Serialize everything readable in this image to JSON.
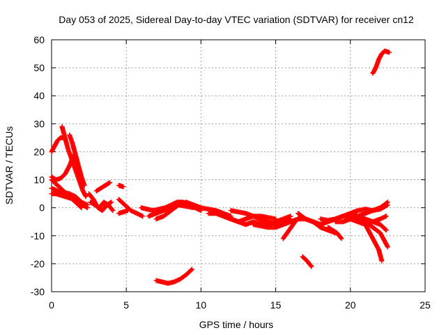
{
  "chart_data": {
    "type": "scatter",
    "title": "Day 053 of 2025, Sidereal Day-to-day VTEC variation (SDTVAR) for receiver cn12",
    "xlabel": "GPS time / hours",
    "ylabel": "SDTVAR / TECUs",
    "xlim": [
      0,
      25
    ],
    "ylim": [
      -30,
      60
    ],
    "xticks": [
      0,
      5,
      10,
      15,
      20,
      25
    ],
    "yticks": [
      -30,
      -20,
      -10,
      0,
      10,
      20,
      30,
      40,
      50,
      60
    ],
    "grid": true,
    "marker": "plus",
    "color": "#ff0000",
    "series": [
      {
        "name": "s1",
        "x": [
          0.0,
          0.2,
          0.4,
          0.6,
          0.8
        ],
        "y": [
          20,
          22,
          24,
          25,
          25
        ]
      },
      {
        "name": "s2",
        "x": [
          0.7,
          0.9,
          1.1,
          1.3,
          1.5,
          1.7,
          1.9,
          2.1,
          2.3
        ],
        "y": [
          29,
          25,
          21,
          18,
          15,
          12,
          9,
          6,
          4
        ]
      },
      {
        "name": "s3",
        "x": [
          1.2,
          1.4,
          1.6,
          1.8,
          2.0,
          2.2
        ],
        "y": [
          26,
          23,
          19,
          15,
          11,
          8
        ]
      },
      {
        "name": "s4",
        "x": [
          0.0,
          0.3,
          0.6,
          0.9,
          1.2,
          1.5,
          1.8,
          2.1
        ],
        "y": [
          11,
          10,
          10.5,
          12,
          15,
          19,
          14,
          9
        ]
      },
      {
        "name": "s5",
        "x": [
          0.0,
          0.4,
          0.8,
          1.2,
          1.6,
          2.0,
          2.4
        ],
        "y": [
          7,
          6,
          5.5,
          5,
          4,
          2,
          1
        ]
      },
      {
        "name": "s6",
        "x": [
          0.0,
          0.4,
          0.8,
          1.2,
          1.6,
          2.0
        ],
        "y": [
          10,
          8,
          6,
          4,
          2,
          0
        ]
      },
      {
        "name": "s7",
        "x": [
          0.0,
          0.3,
          0.6,
          0.9,
          1.2,
          1.5,
          1.8,
          2.1,
          2.4
        ],
        "y": [
          5,
          5,
          4.5,
          4,
          3.5,
          3,
          2,
          1,
          0
        ]
      },
      {
        "name": "s8",
        "x": [
          2.5,
          2.8,
          3.1,
          3.4,
          3.7,
          4.0
        ],
        "y": [
          5,
          3,
          0,
          -1,
          1,
          2
        ]
      },
      {
        "name": "s9",
        "x": [
          2.6,
          2.9,
          3.2,
          3.5,
          3.8,
          4.1
        ],
        "y": [
          2,
          1,
          0,
          2,
          1,
          -1
        ]
      },
      {
        "name": "s10",
        "x": [
          3.0,
          3.3,
          3.6,
          3.9
        ],
        "y": [
          6,
          7,
          8,
          9
        ]
      },
      {
        "name": "s11",
        "x": [
          4.5,
          4.8
        ],
        "y": [
          8,
          7.5
        ]
      },
      {
        "name": "s12",
        "x": [
          4.5,
          4.9,
          5.3,
          5.7,
          6.1
        ],
        "y": [
          3,
          1,
          -1,
          -2,
          -3
        ]
      },
      {
        "name": "s13",
        "x": [
          4.5,
          4.8,
          5.1
        ],
        "y": [
          -2,
          -1.5,
          -1
        ]
      },
      {
        "name": "s14",
        "x": [
          6.0,
          6.4,
          6.8,
          7.2,
          7.6,
          8.0,
          8.4,
          8.8,
          9.2,
          9.6,
          10.0
        ],
        "y": [
          0,
          -0.5,
          -1,
          -0.5,
          0,
          1,
          2,
          2,
          1,
          0,
          -1
        ]
      },
      {
        "name": "s15",
        "x": [
          6.5,
          7.0,
          7.5,
          8.0,
          8.5,
          9.0,
          9.5
        ],
        "y": [
          -3,
          -2,
          -1,
          0,
          1,
          0.5,
          0
        ]
      },
      {
        "name": "s16",
        "x": [
          7.0,
          7.5,
          8.0,
          8.5,
          9.0,
          9.5
        ],
        "y": [
          -4,
          -3,
          -1,
          1,
          2,
          1
        ]
      },
      {
        "name": "s17",
        "x": [
          7.0,
          7.4,
          7.8,
          8.2,
          8.6,
          9.0,
          9.4
        ],
        "y": [
          -26,
          -26.5,
          -27,
          -26.5,
          -25.5,
          -24,
          -22
        ]
      },
      {
        "name": "s18",
        "x": [
          9.5,
          10.0,
          10.5,
          11.0,
          11.5,
          12.0
        ],
        "y": [
          1,
          0,
          -0.5,
          -1,
          -2,
          -3
        ]
      },
      {
        "name": "s19",
        "x": [
          10.5,
          11.0,
          11.5,
          12.0,
          12.5,
          13.0,
          13.5,
          14.0,
          14.5,
          15.0
        ],
        "y": [
          -2,
          -2,
          -3,
          -4,
          -5,
          -4,
          -3,
          -3,
          -3.5,
          -4
        ]
      },
      {
        "name": "s20",
        "x": [
          11.5,
          12.0,
          12.5,
          13.0,
          13.5,
          14.0,
          14.5,
          15.0,
          15.5,
          16.0
        ],
        "y": [
          -3,
          -4,
          -5,
          -6,
          -5,
          -5.5,
          -6,
          -5,
          -4,
          -3
        ]
      },
      {
        "name": "s21",
        "x": [
          12.0,
          12.5,
          13.0,
          13.5,
          14.0,
          14.5,
          15.0,
          15.5,
          16.0
        ],
        "y": [
          -1,
          -1.5,
          -2,
          -3,
          -4,
          -5,
          -6,
          -5,
          -4
        ]
      },
      {
        "name": "s22",
        "x": [
          13.5,
          14.0,
          14.5,
          15.0,
          15.5,
          16.0,
          16.5,
          17.0,
          17.5,
          18.0
        ],
        "y": [
          -6,
          -6.5,
          -7,
          -7,
          -6,
          -5,
          -4,
          -4,
          -5,
          -6
        ]
      },
      {
        "name": "s23",
        "x": [
          15.5,
          15.9,
          16.3,
          16.7
        ],
        "y": [
          -11,
          -8,
          -5,
          -3
        ]
      },
      {
        "name": "s24",
        "x": [
          16.5,
          17.0,
          17.5,
          18.0,
          18.5,
          19.0,
          19.5
        ],
        "y": [
          -2,
          -4,
          -5,
          -6,
          -5,
          -4,
          -3
        ]
      },
      {
        "name": "s25",
        "x": [
          17.5,
          18.0,
          18.5,
          19.0
        ],
        "y": [
          -5,
          -7,
          -8,
          -9
        ]
      },
      {
        "name": "s26",
        "x": [
          18.0,
          18.5,
          19.0,
          19.5,
          20.0,
          20.5,
          21.0,
          21.5,
          22.0,
          22.5
        ],
        "y": [
          -4,
          -4.5,
          -4,
          -3,
          -2,
          -1,
          -0.5,
          -1,
          -0.5,
          1
        ]
      },
      {
        "name": "s27",
        "x": [
          18.5,
          18.8,
          19.1,
          19.4
        ],
        "y": [
          -7,
          -8,
          -9,
          -11
        ]
      },
      {
        "name": "s28",
        "x": [
          19.0,
          19.5,
          20.0,
          20.5,
          21.0,
          21.5,
          22.0,
          22.5
        ],
        "y": [
          -5,
          -5,
          -4,
          -3,
          -2,
          -1,
          0,
          2
        ]
      },
      {
        "name": "s29",
        "x": [
          19.5,
          20.0,
          20.5,
          21.0,
          21.5,
          22.0,
          22.5
        ],
        "y": [
          -3,
          -3,
          -4,
          -5,
          -7,
          -9,
          -14
        ]
      },
      {
        "name": "s30",
        "x": [
          20.0,
          20.5,
          21.0,
          21.5,
          22.0,
          22.4
        ],
        "y": [
          -2,
          -3,
          -4,
          -5,
          -6,
          -8
        ]
      },
      {
        "name": "s31",
        "x": [
          20.0,
          20.5,
          21.0,
          21.5,
          22.0,
          22.4
        ],
        "y": [
          -4,
          -5,
          -6,
          -5,
          -4,
          -3
        ]
      },
      {
        "name": "s32",
        "x": [
          21.0,
          21.3,
          21.6,
          21.9,
          22.1
        ],
        "y": [
          -6,
          -9,
          -12,
          -15,
          -19
        ]
      },
      {
        "name": "s33",
        "x": [
          21.5,
          21.7,
          21.9,
          22.1,
          22.3,
          22.6
        ],
        "y": [
          48,
          50,
          53,
          55,
          56,
          55.5
        ]
      },
      {
        "name": "s34",
        "x": [
          16.8,
          17.1,
          17.4
        ],
        "y": [
          -17.5,
          -19,
          -21
        ]
      }
    ]
  }
}
